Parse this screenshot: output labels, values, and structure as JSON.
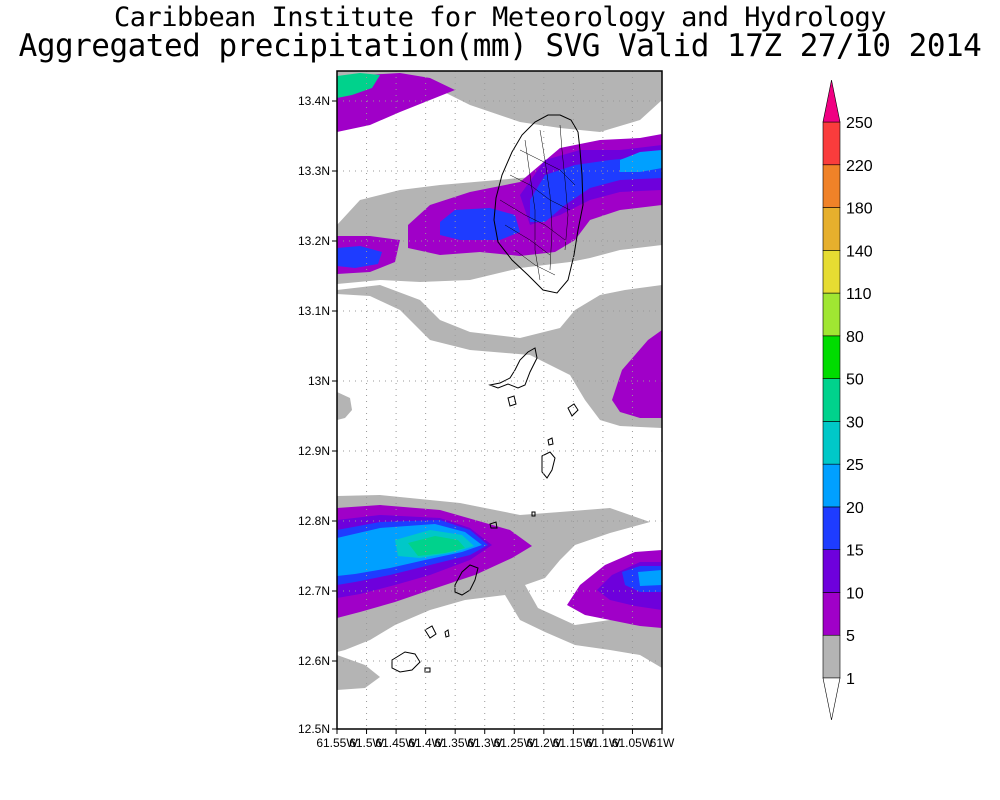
{
  "header": {
    "title_line1": "Caribbean Institute for Meteorology and Hydrology",
    "title_line2": "Aggregated precipitation(mm) SVG Valid 17Z 27/10 2014"
  },
  "map": {
    "lat_labels": [
      "13.4N",
      "13.3N",
      "13.2N",
      "13.1N",
      "13N",
      "12.9N",
      "12.8N",
      "12.7N",
      "12.6N",
      "12.5N"
    ],
    "lon_labels": [
      "61.55W",
      "61.5W",
      "61.45W",
      "61.4W",
      "61.35W",
      "61.3W",
      "61.25W",
      "61.2W",
      "61.15W",
      "61.1W",
      "61.05W",
      "61W"
    ]
  },
  "colorbar": {
    "levels": [
      "1",
      "5",
      "10",
      "15",
      "20",
      "25",
      "30",
      "50",
      "80",
      "110",
      "140",
      "180",
      "220",
      "250"
    ],
    "colors": [
      "#b4b4b4",
      "#a000c8",
      "#6e00dc",
      "#1e3cff",
      "#00a0ff",
      "#00c8c8",
      "#00d28c",
      "#00dc00",
      "#a0e632",
      "#e6dc32",
      "#e6af2d",
      "#f08228",
      "#fa3c3c",
      "#f00082"
    ]
  }
}
